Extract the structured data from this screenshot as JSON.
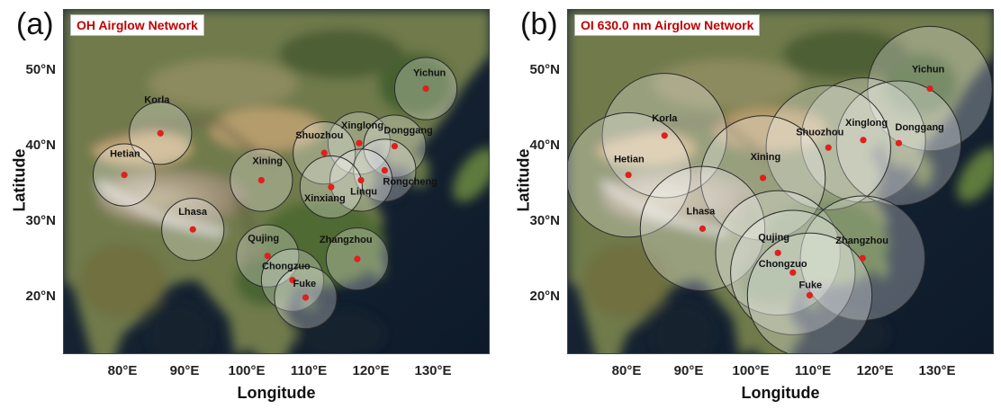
{
  "figure": {
    "panels": [
      {
        "id": "a",
        "letter": "(a)",
        "title": "OH Airglow Network",
        "xlabel": "Longitude",
        "ylabel": "Latitude"
      },
      {
        "id": "b",
        "letter": "(b)",
        "title": "OI 630.0 nm Airglow Network",
        "xlabel": "Longitude",
        "ylabel": "Latitude"
      }
    ],
    "lon_ticks": [
      "80°E",
      "90°E",
      "100°E",
      "110°E",
      "120°E",
      "130°E"
    ],
    "lat_ticks": [
      "50°N",
      "40°N",
      "30°N",
      "20°N"
    ]
  },
  "chart_data": [
    {
      "type": "scatter",
      "title": "OH Airglow Network",
      "xlabel": "Longitude",
      "ylabel": "Latitude",
      "xlim": [
        70.5,
        139
      ],
      "ylim": [
        12.2,
        57.8
      ],
      "field_of_view_radius_deg": 5,
      "colors": {
        "station": "#e0201c",
        "circle_fill": "#ffffff",
        "circle_stroke": "#2a2a2a"
      },
      "stations": [
        {
          "name": "Yichun",
          "lon": 128.6,
          "lat": 47.4
        },
        {
          "name": "Korla",
          "lon": 86.0,
          "lat": 41.5
        },
        {
          "name": "Hetian",
          "lon": 80.2,
          "lat": 36.0
        },
        {
          "name": "Xinglong",
          "lon": 117.9,
          "lat": 40.2
        },
        {
          "name": "Donggang",
          "lon": 123.6,
          "lat": 39.8
        },
        {
          "name": "Shuozhou",
          "lon": 112.3,
          "lat": 38.9
        },
        {
          "name": "Xining",
          "lon": 102.2,
          "lat": 35.3
        },
        {
          "name": "Rongcheng",
          "lon": 122.0,
          "lat": 36.6
        },
        {
          "name": "Linqu",
          "lon": 118.2,
          "lat": 35.3
        },
        {
          "name": "Xinxiang",
          "lon": 113.4,
          "lat": 34.4
        },
        {
          "name": "Lhasa",
          "lon": 91.2,
          "lat": 28.8
        },
        {
          "name": "Qujing",
          "lon": 103.2,
          "lat": 25.3
        },
        {
          "name": "Zhangzhou",
          "lon": 117.6,
          "lat": 24.9
        },
        {
          "name": "Chongzuo",
          "lon": 107.2,
          "lat": 22.1
        },
        {
          "name": "Fuke",
          "lon": 109.3,
          "lat": 19.8
        }
      ]
    },
    {
      "type": "scatter",
      "title": "OI 630.0 nm Airglow Network",
      "xlabel": "Longitude",
      "ylabel": "Latitude",
      "xlim": [
        70.5,
        139
      ],
      "ylim": [
        12.2,
        57.8
      ],
      "field_of_view_radius_deg": 10,
      "colors": {
        "station": "#e0201c",
        "circle_fill": "#ffffff",
        "circle_stroke": "#2a2a2a"
      },
      "stations": [
        {
          "name": "Yichun",
          "lon": 128.6,
          "lat": 47.4
        },
        {
          "name": "Korla",
          "lon": 86.0,
          "lat": 41.2
        },
        {
          "name": "Hetian",
          "lon": 80.2,
          "lat": 36.0
        },
        {
          "name": "Xinglong",
          "lon": 117.9,
          "lat": 40.6
        },
        {
          "name": "Donggang",
          "lon": 123.6,
          "lat": 40.2
        },
        {
          "name": "Shuozhou",
          "lon": 112.3,
          "lat": 39.6
        },
        {
          "name": "Xining",
          "lon": 101.8,
          "lat": 35.6
        },
        {
          "name": "Lhasa",
          "lon": 92.1,
          "lat": 28.9
        },
        {
          "name": "Qujing",
          "lon": 104.2,
          "lat": 25.7
        },
        {
          "name": "Zhangzhou",
          "lon": 117.8,
          "lat": 25.0
        },
        {
          "name": "Chongzuo",
          "lon": 106.6,
          "lat": 23.1
        },
        {
          "name": "Fuke",
          "lon": 109.3,
          "lat": 20.1
        }
      ]
    }
  ]
}
